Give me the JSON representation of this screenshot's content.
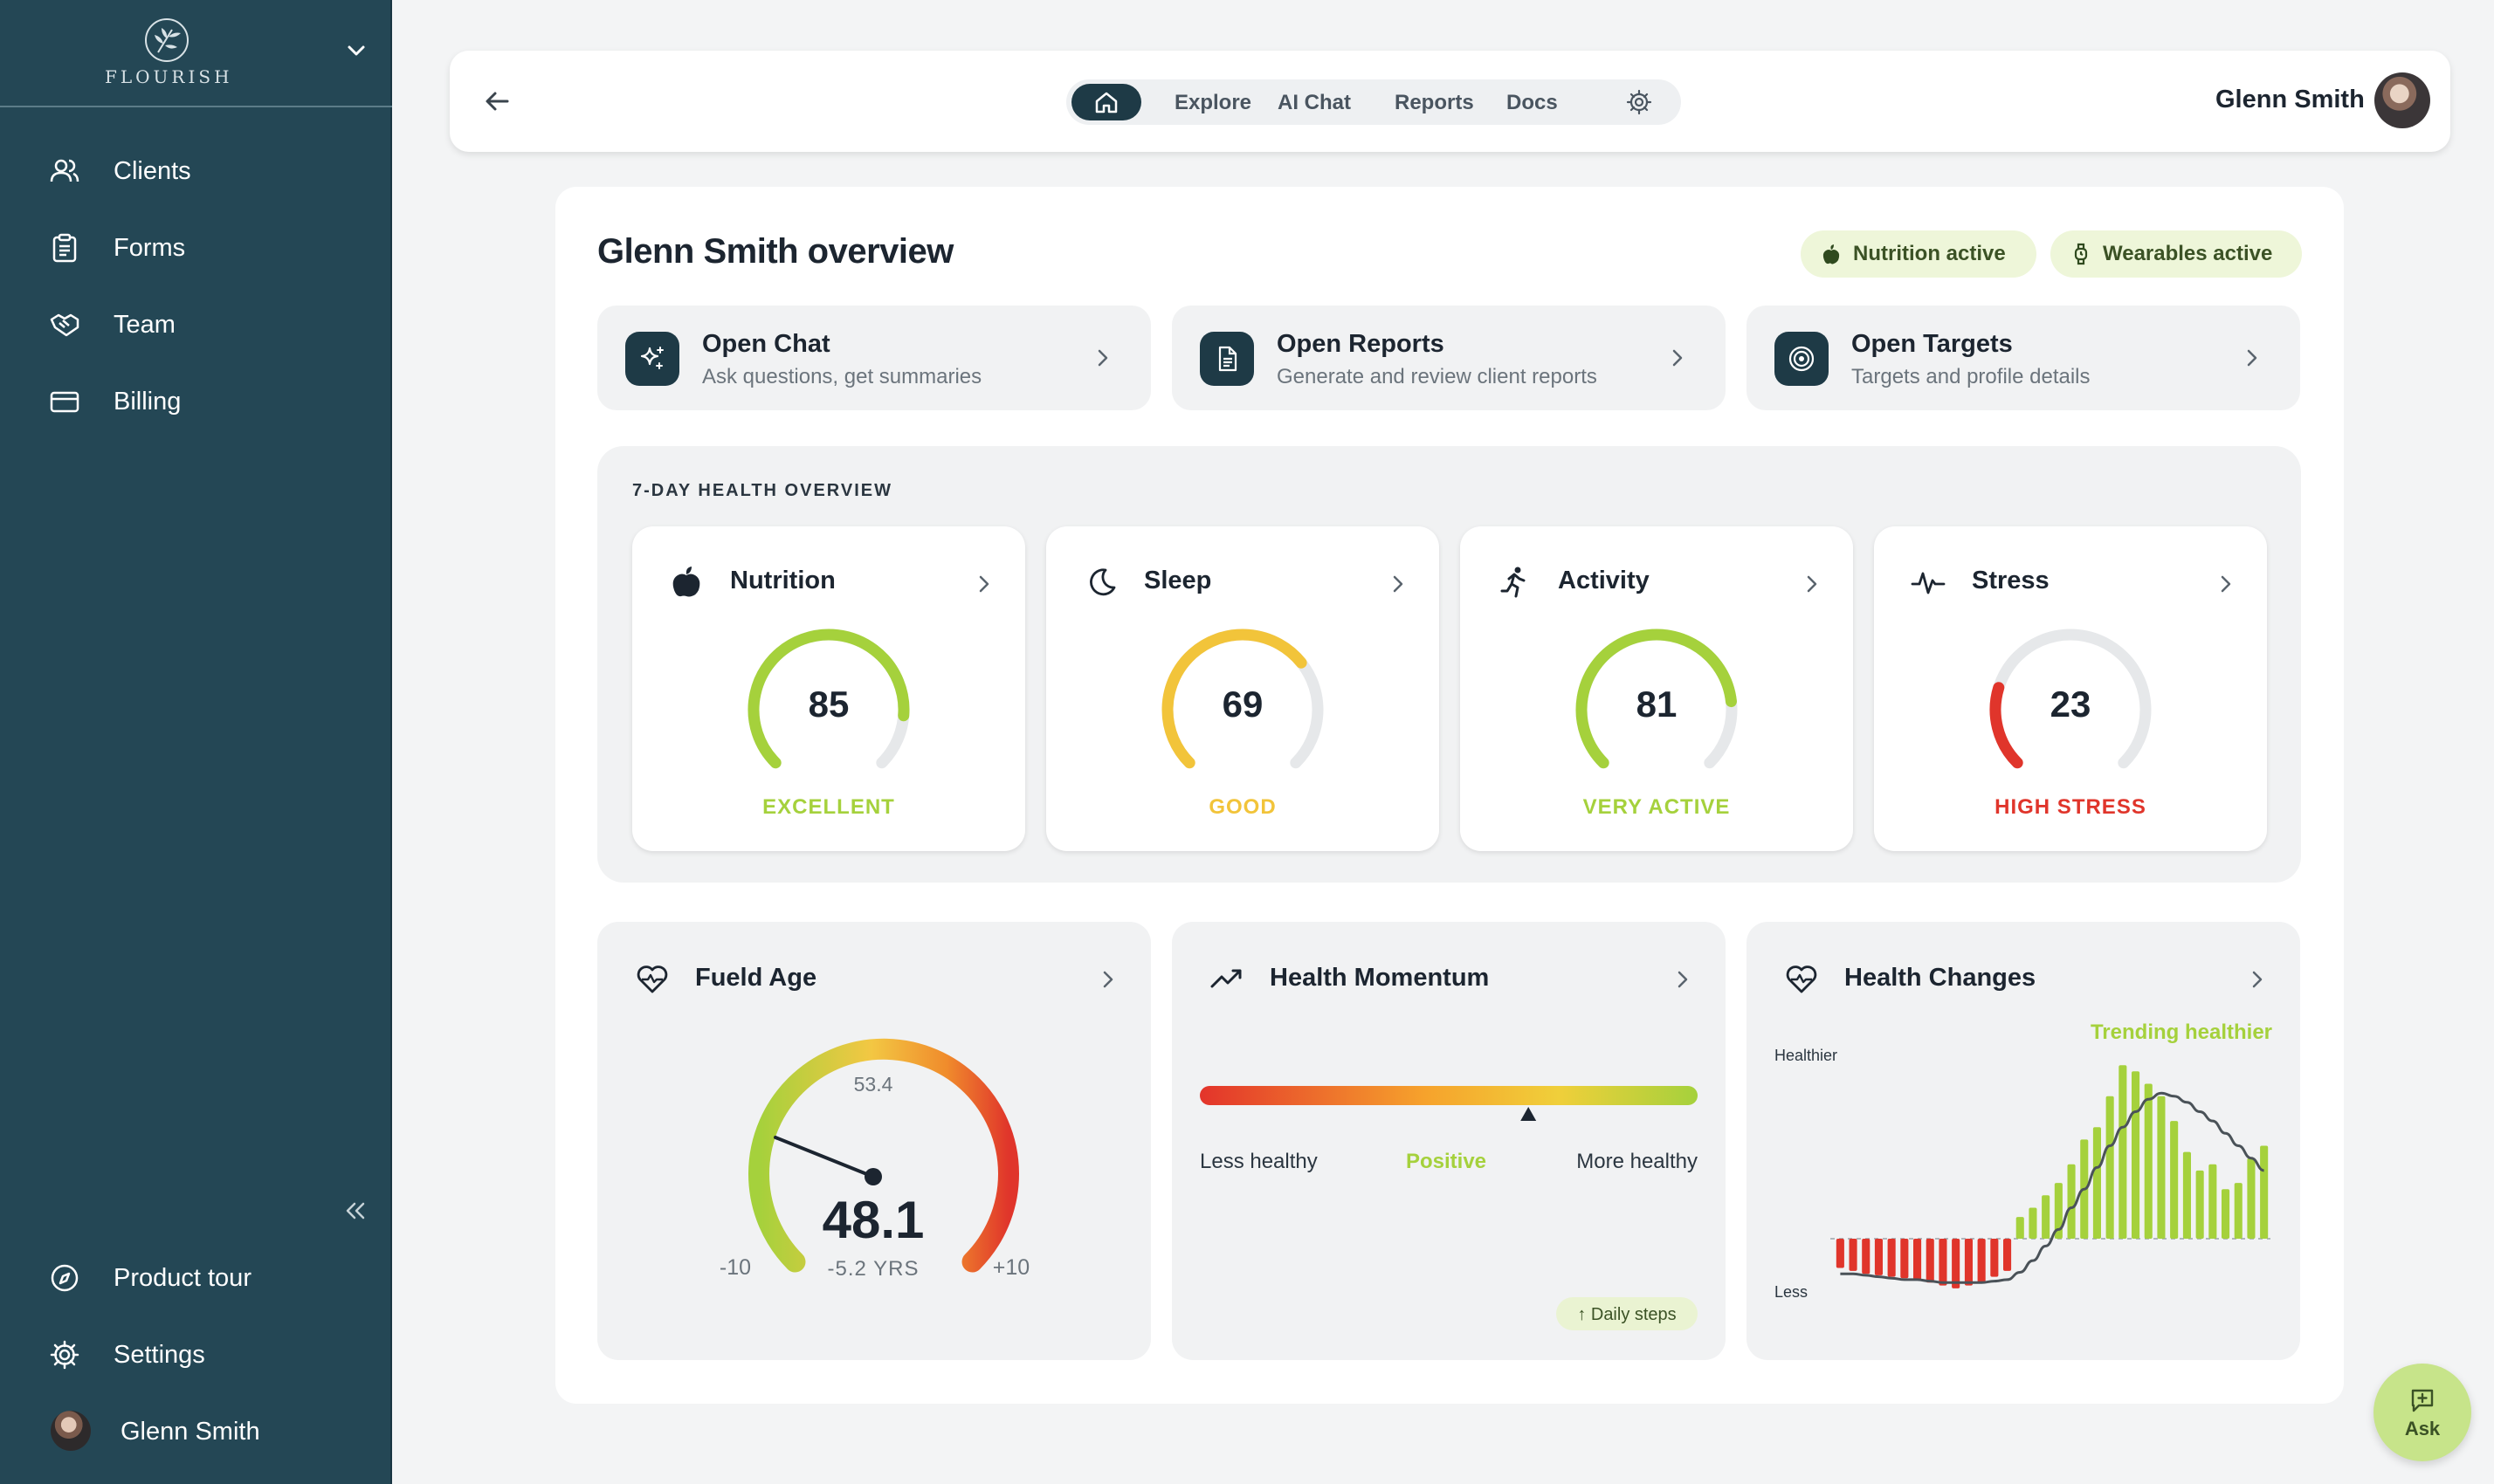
{
  "sidebar": {
    "brand": "FLOURISH",
    "items": [
      {
        "label": "Clients",
        "icon": "users-icon"
      },
      {
        "label": "Forms",
        "icon": "clipboard-icon"
      },
      {
        "label": "Team",
        "icon": "handshake-icon"
      },
      {
        "label": "Billing",
        "icon": "credit-card-icon"
      }
    ],
    "footer": [
      {
        "label": "Product tour",
        "icon": "compass-icon"
      },
      {
        "label": "Settings",
        "icon": "gear-icon"
      },
      {
        "label": "Glenn Smith",
        "icon": "avatar"
      }
    ]
  },
  "topbar": {
    "links": [
      "Explore",
      "AI Chat",
      "Reports",
      "Docs"
    ],
    "user_name": "Glenn Smith"
  },
  "main": {
    "title": "Glenn Smith overview",
    "badges": [
      "Nutrition active",
      "Wearables active"
    ],
    "quick_actions": [
      {
        "title": "Open Chat",
        "subtitle": "Ask questions, get summaries",
        "icon": "sparkles-icon"
      },
      {
        "title": "Open Reports",
        "subtitle": "Generate and review client reports",
        "icon": "document-icon"
      },
      {
        "title": "Open Targets",
        "subtitle": "Targets and profile details",
        "icon": "target-icon"
      }
    ],
    "health_overview": {
      "title": "7-DAY HEALTH OVERVIEW",
      "cards": [
        {
          "name": "Nutrition",
          "score": "85",
          "status": "EXCELLENT",
          "fill": 0.85,
          "color": "#a5d13c",
          "icon": "apple-icon"
        },
        {
          "name": "Sleep",
          "score": "69",
          "status": "GOOD",
          "fill": 0.69,
          "color": "#f2c43a",
          "icon": "moon-icon"
        },
        {
          "name": "Activity",
          "score": "81",
          "status": "VERY ACTIVE",
          "fill": 0.81,
          "color": "#a5d13c",
          "icon": "running-icon"
        },
        {
          "name": "Stress",
          "score": "23",
          "status": "HIGH STRESS",
          "fill": 0.23,
          "color": "#e0352b",
          "icon": "pulse-icon"
        }
      ]
    },
    "fueld_age": {
      "title": "Fueld Age",
      "age": "48.1",
      "reference_age": "53.4",
      "delta": "-5.2 YRS",
      "min_label": "-10",
      "max_label": "+10"
    },
    "health_momentum": {
      "title": "Health Momentum",
      "marker_fraction": 0.66,
      "left_label": "Less healthy",
      "center_label": "Positive",
      "right_label": "More healthy",
      "chip": "↑ Daily steps"
    },
    "health_changes": {
      "title": "Health Changes",
      "trend": "Trending healthier",
      "top_label": "Healthier",
      "bottom_label": "Less"
    }
  },
  "ask": {
    "label": "Ask"
  },
  "colors": {
    "sidebar": "#244755",
    "accent_dark": "#1e3a46",
    "good": "#a5d13c",
    "warn": "#f2c43a",
    "bad": "#e0352b"
  },
  "chart_data": {
    "type": "bar",
    "values": [
      -2,
      -2.2,
      -2.4,
      -2.5,
      -2.6,
      -2.7,
      -2.8,
      -3,
      -3.2,
      -3.4,
      -3.2,
      -3,
      -2.6,
      -2.2,
      0.7,
      1,
      1.4,
      1.8,
      2.4,
      3.2,
      3.6,
      4.6,
      5.6,
      5.4,
      5,
      4.6,
      3.8,
      2.8,
      2.2,
      2.4,
      1.6,
      1.8,
      2.6,
      3
    ],
    "trend": [
      -2.4,
      -2.4,
      -2.5,
      -2.6,
      -2.7,
      -2.8,
      -2.8,
      -2.9,
      -3,
      -3,
      -3,
      -3,
      -2.9,
      -2.8,
      -2.3,
      -1.5,
      -0.5,
      0.3,
      1,
      1.6,
      2.3,
      3,
      3.6,
      4.1,
      4.5,
      4.7,
      4.6,
      4.4,
      4.1,
      3.8,
      3.4,
      3.0,
      2.6,
      2.2
    ],
    "ylim": [
      -4,
      6
    ]
  }
}
